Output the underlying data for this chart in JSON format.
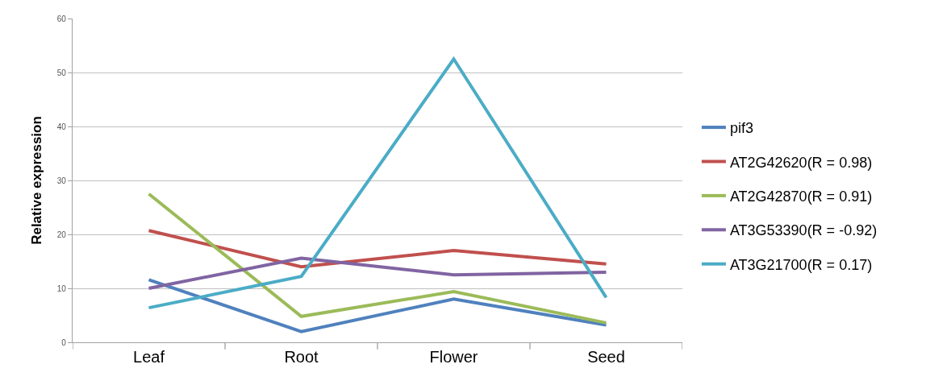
{
  "chart_data": {
    "type": "line",
    "ylabel": "Relative expression",
    "categories": [
      "Leaf",
      "Root",
      "Flower",
      "Seed"
    ],
    "series": [
      {
        "name": "pif3",
        "color": "#4f81bd",
        "values": [
          11.6,
          2.0,
          8.0,
          3.2
        ]
      },
      {
        "name": "AT2G42620(R = 0.98)",
        "color": "#c0504d",
        "values": [
          20.7,
          14.0,
          17.0,
          14.5
        ]
      },
      {
        "name": "AT2G42870(R = 0.91)",
        "color": "#9bbb59",
        "values": [
          27.5,
          4.8,
          9.4,
          3.6
        ]
      },
      {
        "name": "AT3G53390(R = -0.92)",
        "color": "#8064a2",
        "values": [
          10.0,
          15.6,
          12.5,
          13.0
        ]
      },
      {
        "name": "AT3G21700(R = 0.17)",
        "color": "#4bacc6",
        "values": [
          6.4,
          12.2,
          52.5,
          8.3
        ]
      }
    ],
    "ylim": [
      0,
      60
    ],
    "yticks": [
      0,
      10,
      20,
      30,
      40,
      50,
      60
    ],
    "grid": "y",
    "legend": "right"
  }
}
